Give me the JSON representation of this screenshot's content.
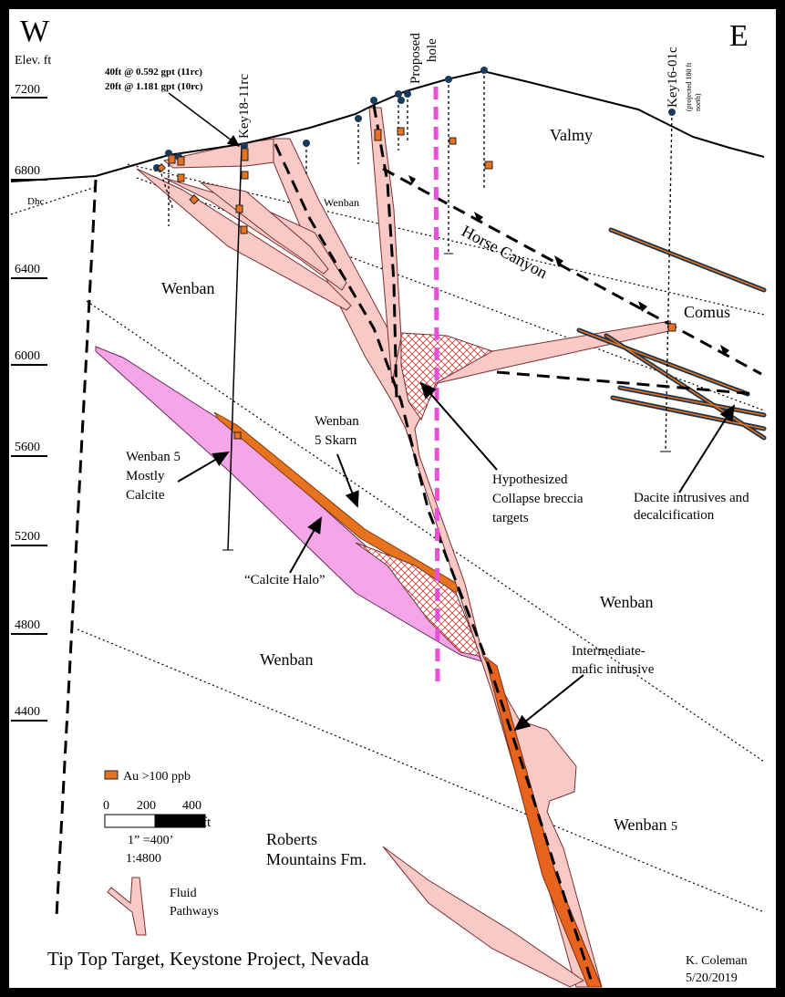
{
  "header": {
    "west": "W",
    "east": "E",
    "elevation_unit": "Elev. ft"
  },
  "elevations": [
    "7200",
    "6800",
    "6400",
    "6000",
    "5600",
    "5200",
    "4800",
    "4400"
  ],
  "units": {
    "dhc": "Dhc",
    "valmy": "Valmy",
    "wenban_top": "Wenban",
    "wenban_upper_left": "Wenban",
    "horse_canyon": "Horse Canyon",
    "comus": "Comus",
    "wenban_right": "Wenban",
    "wenban_lower": "Wenban",
    "wenban_5": "Wenban",
    "wenban_5_sub": "5",
    "roberts": [
      "Roberts",
      "Mountains Fm."
    ]
  },
  "assay": [
    "40ft @ 0.592 gpt (11rc)",
    "20ft @ 1.181 gpt (10rc)"
  ],
  "holes": {
    "key18": "Key18-11rc",
    "proposed": [
      "Proposed",
      "hole"
    ],
    "key16": "Key16-01c",
    "key16_note": [
      "(projected 180 ft",
      "north)"
    ]
  },
  "callouts": {
    "skarn": [
      "Wenban",
      "5 Skarn"
    ],
    "calcite": [
      "Wenban 5",
      "Mostly",
      "Calcite"
    ],
    "halo": "“Calcite Halo”",
    "breccia": [
      "Hypothesized",
      "Collapse breccia",
      "targets"
    ],
    "dacite": [
      "Dacite intrusives and",
      "decalcification"
    ],
    "intrusive": [
      "Intermediate-",
      "mafic intrusive"
    ]
  },
  "legend": {
    "au": "Au >100 ppb",
    "scale": [
      "0",
      "200",
      "400"
    ],
    "scale_unit": "ft",
    "inch": "1” =400’",
    "ratio": "1:4800",
    "fluid": [
      "Fluid",
      "Pathways"
    ]
  },
  "footer": {
    "title": "Tip Top Target, Keystone Project, Nevada",
    "author": "K. Coleman",
    "date": "5/20/2019"
  }
}
